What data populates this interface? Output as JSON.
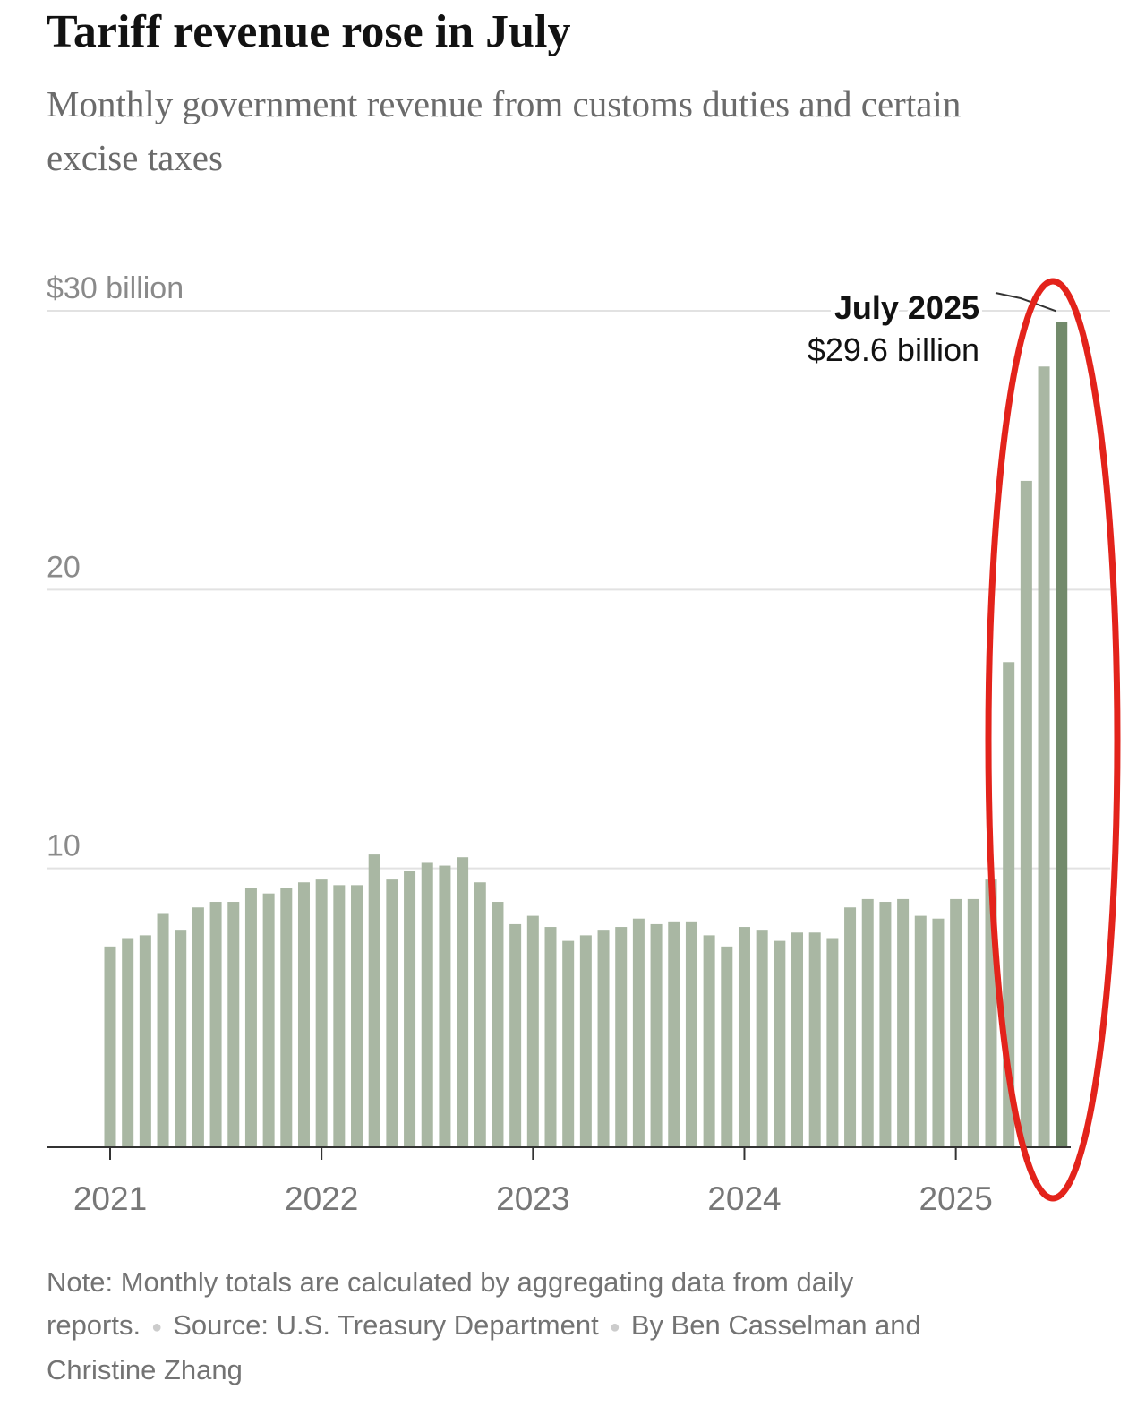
{
  "chart_data": {
    "type": "bar",
    "title": "Tariff revenue rose in July",
    "subtitle": "Monthly government revenue from customs duties and certain excise taxes",
    "categories": [
      "2021",
      null,
      null,
      null,
      null,
      null,
      null,
      null,
      null,
      null,
      null,
      null,
      "2022",
      null,
      null,
      null,
      null,
      null,
      null,
      null,
      null,
      null,
      null,
      null,
      "2023",
      null,
      null,
      null,
      null,
      null,
      null,
      null,
      null,
      null,
      null,
      null,
      "2024",
      null,
      null,
      null,
      null,
      null,
      null,
      null,
      null,
      null,
      null,
      null,
      "2025",
      null,
      null,
      null,
      null,
      null,
      null
    ],
    "values": [
      7.2,
      7.5,
      7.6,
      8.4,
      7.8,
      8.6,
      8.8,
      8.8,
      9.3,
      9.1,
      9.3,
      9.5,
      9.6,
      9.4,
      9.4,
      10.5,
      9.6,
      9.9,
      10.2,
      10.1,
      10.4,
      9.5,
      8.8,
      8.0,
      8.3,
      7.9,
      7.4,
      7.6,
      7.8,
      7.9,
      8.2,
      8.0,
      8.1,
      8.1,
      7.6,
      7.2,
      7.9,
      7.8,
      7.4,
      7.7,
      7.7,
      7.5,
      8.6,
      8.9,
      8.8,
      8.9,
      8.3,
      8.2,
      8.9,
      8.9,
      9.6,
      17.4,
      23.9,
      28.0,
      29.6
    ],
    "color": "#a9b7a3",
    "highlight_color": "#728a6b",
    "ylim": [
      0,
      30
    ],
    "yticks": [
      10,
      20,
      {
        "value": 30,
        "label": "$30 billion"
      }
    ],
    "grid": true,
    "annotation": {
      "label": "July 2025",
      "value_label": "$29.6 billion"
    },
    "note": "Note: Monthly totals are calculated by aggregating data from daily reports.",
    "source": "Source: U.S. Treasury Department",
    "byline": "By Ben Casselman and Christine Zhang"
  }
}
